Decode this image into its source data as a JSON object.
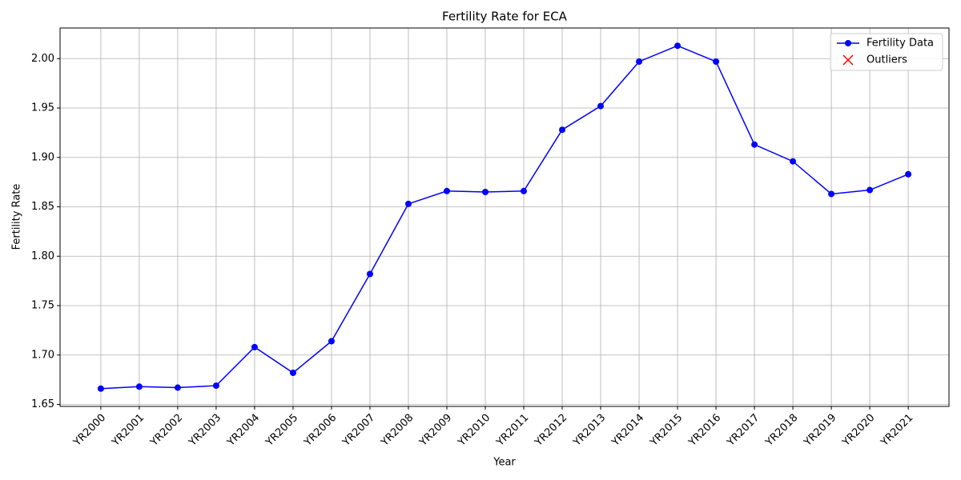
{
  "chart_data": {
    "type": "line",
    "title": "Fertility Rate for ECA",
    "x_label": "Year",
    "y_label": "Fertility Rate",
    "categories": [
      "YR2000",
      "YR2001",
      "YR2002",
      "YR2003",
      "YR2004",
      "YR2005",
      "YR2006",
      "YR2007",
      "YR2008",
      "YR2009",
      "YR2010",
      "YR2011",
      "YR2012",
      "YR2013",
      "YR2014",
      "YR2015",
      "YR2016",
      "YR2017",
      "YR2018",
      "YR2019",
      "YR2020",
      "YR2021"
    ],
    "series": [
      {
        "name": "Fertility Data",
        "color": "#0000ff",
        "values": [
          1.666,
          1.668,
          1.667,
          1.669,
          1.708,
          1.682,
          1.714,
          1.782,
          1.853,
          1.866,
          1.865,
          1.866,
          1.928,
          1.952,
          1.997,
          2.013,
          1.997,
          1.913,
          1.896,
          1.863,
          1.867,
          1.883
        ]
      },
      {
        "name": "Outliers",
        "color": "#ff0000",
        "values": [
          null,
          null,
          null,
          null,
          null,
          null,
          null,
          null,
          null,
          null,
          null,
          null,
          null,
          null,
          null,
          null,
          null,
          null,
          null,
          null,
          null,
          null
        ]
      }
    ],
    "ylim": [
      1.648,
      2.031
    ],
    "yticks": [
      1.65,
      {
        "value": 1.7,
        "label": "1.70"
      },
      1.75,
      {
        "value": 1.8,
        "label": "1.80"
      },
      1.85,
      {
        "value": 1.9,
        "label": "1.90"
      },
      1.95,
      {
        "value": 2,
        "label": "2.00"
      }
    ],
    "grid": true,
    "legend": "upper right"
  }
}
